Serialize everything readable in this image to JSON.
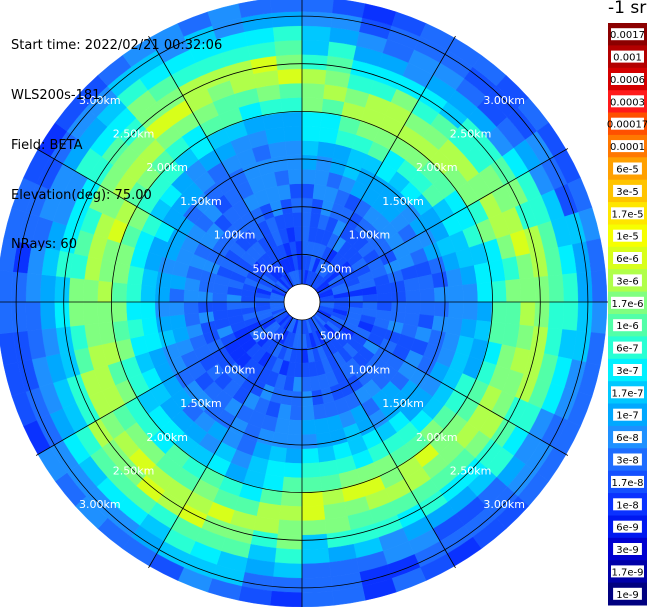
{
  "header": {
    "start_time": "Start time: 2022/02/21 00:32:06",
    "site": "WLS200s-181",
    "field": "Field: BETA",
    "elevation": "Elevation(deg): 75.00",
    "nrays": "NRays: 60"
  },
  "colorbar": {
    "title": "-1 sr",
    "labels": [
      "0.0017",
      "0.001",
      "0.0006",
      "0.0003",
      "0.00017",
      "0.0001",
      "6e-5",
      "3e-5",
      "1.7e-5",
      "1e-5",
      "6e-6",
      "3e-6",
      "1.7e-6",
      "1e-6",
      "6e-7",
      "3e-7",
      "1.7e-7",
      "1e-7",
      "6e-8",
      "3e-8",
      "1.7e-8",
      "1e-8",
      "6e-9",
      "3e-9",
      "1.7e-9",
      "1e-9"
    ],
    "colors": [
      "#8b0000",
      "#b30000",
      "#d40000",
      "#ff1a1a",
      "#ff5000",
      "#ff7800",
      "#ffa000",
      "#ffc400",
      "#ffe600",
      "#f6ff00",
      "#d8ff1a",
      "#b0ff4a",
      "#80ff80",
      "#52ffa8",
      "#28ffd4",
      "#00f0ff",
      "#00c8ff",
      "#00a8ff",
      "#1e90ff",
      "#1e6cff",
      "#1450ff",
      "#0a32ff",
      "#0018f0",
      "#0000d0",
      "#0000a8",
      "#000080"
    ]
  },
  "chart_data": {
    "type": "heatmap",
    "projection": "polar (PPI scan)",
    "field": "BETA",
    "units": "sr-1",
    "elevation_deg": 75.0,
    "n_rays": 60,
    "range_rings": [
      "500m",
      "1.00km",
      "1.50km",
      "2.00km",
      "2.50km",
      "3.00km"
    ],
    "ring_values_km": [
      0.5,
      1.0,
      1.5,
      2.0,
      2.5,
      3.0
    ],
    "spoke_step_deg": 30,
    "max_range_km": 3.2,
    "range_gates": 20,
    "gate_profile_log10": [
      -7.8,
      -7.7,
      -7.7,
      -7.7,
      -7.6,
      -7.6,
      -7.5,
      -7.4,
      -7.2,
      -7.0,
      -6.7,
      -6.3,
      -5.9,
      -5.5,
      -5.6,
      -6.1,
      -6.5,
      -7.0,
      -7.4,
      -7.7
    ],
    "colorscale_min": "1e-9",
    "colorscale_max": "0.0017"
  }
}
